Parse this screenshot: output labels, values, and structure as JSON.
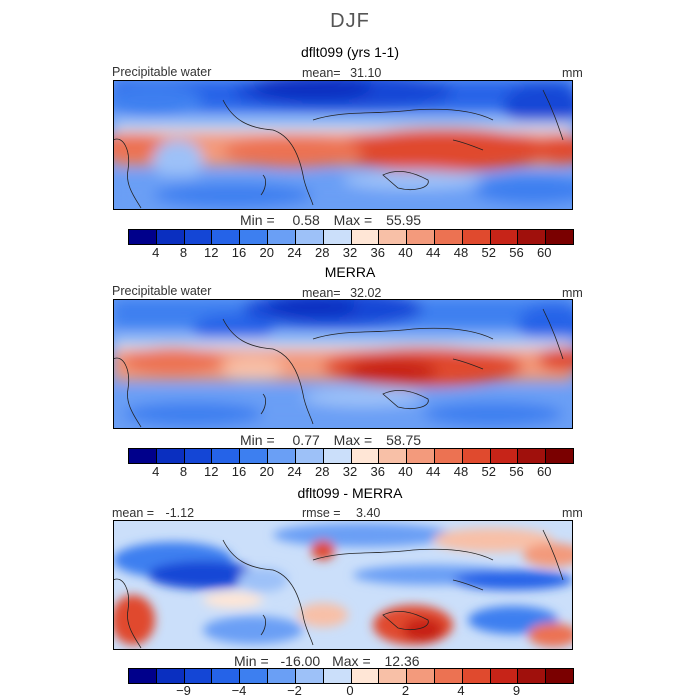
{
  "figure": {
    "title": "DJF",
    "panels": [
      {
        "id": "model",
        "title": "dflt099 (yrs 1-1)",
        "variable": "Precipitable water",
        "stat_label": "mean=",
        "stat_value": "31.10",
        "units": "mm",
        "min_label": "Min =",
        "min_value": "0.58",
        "max_label": "Max =",
        "max_value": "55.95"
      },
      {
        "id": "obs",
        "title": "MERRA",
        "variable": "Precipitable water",
        "stat_label": "mean=",
        "stat_value": "32.02",
        "units": "mm",
        "min_label": "Min =",
        "min_value": "0.77",
        "max_label": "Max =",
        "max_value": "58.75"
      },
      {
        "id": "diff",
        "title": "dflt099 - MERRA",
        "mean_label": "mean =",
        "mean_value": "-1.12",
        "rmse_label": "rmse =",
        "rmse_value": "3.40",
        "units": "mm",
        "min_label": "Min =",
        "min_value": "-16.00",
        "max_label": "Max =",
        "max_value": "12.36"
      }
    ],
    "colorbar_full": {
      "colors": [
        "#00008b",
        "#0a2fc0",
        "#1446d6",
        "#2563e8",
        "#3d7ff0",
        "#6a9ff5",
        "#9dc1f8",
        "#cbdffa",
        "#ffe6d6",
        "#f8c0a7",
        "#f39a7c",
        "#ec7252",
        "#e04a2e",
        "#c72418",
        "#a0100c",
        "#7a0000"
      ],
      "ticks": [
        "4",
        "8",
        "12",
        "16",
        "20",
        "24",
        "28",
        "32",
        "36",
        "40",
        "44",
        "48",
        "52",
        "56",
        "60"
      ]
    },
    "colorbar_diff": {
      "colors": [
        "#00008b",
        "#0a2fc0",
        "#1446d6",
        "#2563e8",
        "#3d7ff0",
        "#6a9ff5",
        "#9dc1f8",
        "#cbdffa",
        "#ffe6d6",
        "#f8c0a7",
        "#f39a7c",
        "#ec7252",
        "#e04a2e",
        "#c72418",
        "#a0100c",
        "#7a0000"
      ],
      "ticks": [
        "−9",
        "−4",
        "−2",
        "0",
        "2",
        "4",
        "9"
      ]
    }
  }
}
